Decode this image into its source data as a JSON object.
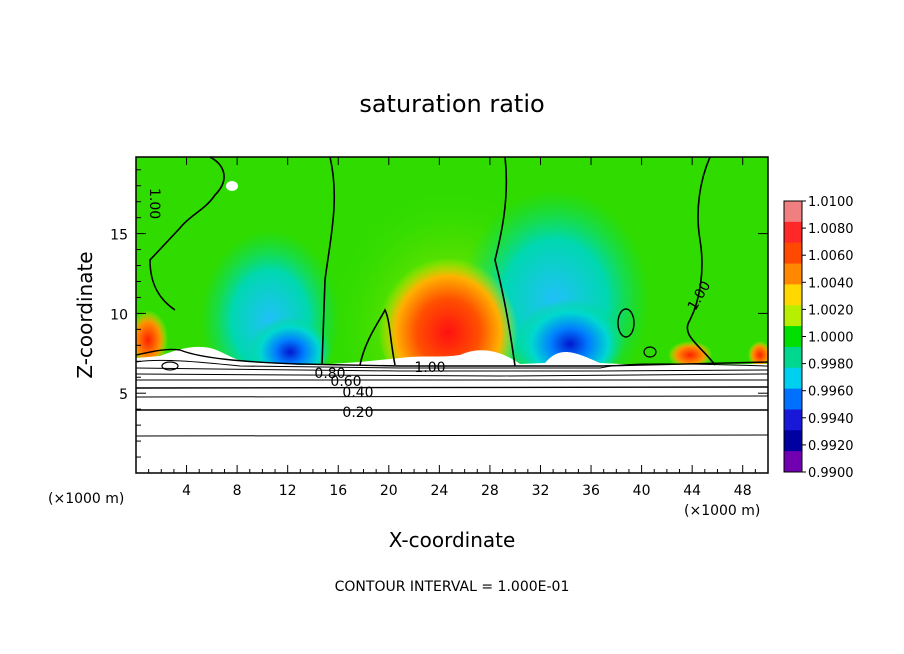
{
  "chart_data": {
    "type": "heatmap",
    "title": "saturation ratio",
    "xlabel": "X-coordinate",
    "ylabel": "Z-coordinate",
    "x_unit_left": "(×1000 m)",
    "x_unit_right": "(×1000 m)",
    "x_ticks": [
      "4",
      "8",
      "12",
      "16",
      "20",
      "24",
      "28",
      "32",
      "36",
      "40",
      "44",
      "48"
    ],
    "x_tick_values": [
      4,
      8,
      12,
      16,
      20,
      24,
      28,
      32,
      36,
      40,
      44,
      48
    ],
    "y_ticks": [
      "5",
      "10",
      "15"
    ],
    "y_tick_values": [
      5,
      10,
      15
    ],
    "xlim": [
      0,
      50
    ],
    "ylim": [
      0,
      19.8
    ],
    "contour_interval_text": "CONTOUR INTERVAL = 1.000E-01",
    "contour_labels": [
      "1.00",
      "1.00",
      "1.00",
      "0.80",
      "0.60",
      "0.40",
      "0.20"
    ],
    "colorbar": {
      "ticks": [
        "1.0100",
        "1.0080",
        "1.0060",
        "1.0040",
        "1.0020",
        "1.0000",
        "0.9980",
        "0.9960",
        "0.9940",
        "0.9920",
        "0.9900"
      ],
      "colors": [
        "#f08080",
        "#ff2828",
        "#ff4800",
        "#ff8800",
        "#ffd800",
        "#b8ee00",
        "#00e000",
        "#00d890",
        "#00d0f0",
        "#0070ff",
        "#1818d8",
        "#0000a0",
        "#7000b0"
      ]
    }
  }
}
